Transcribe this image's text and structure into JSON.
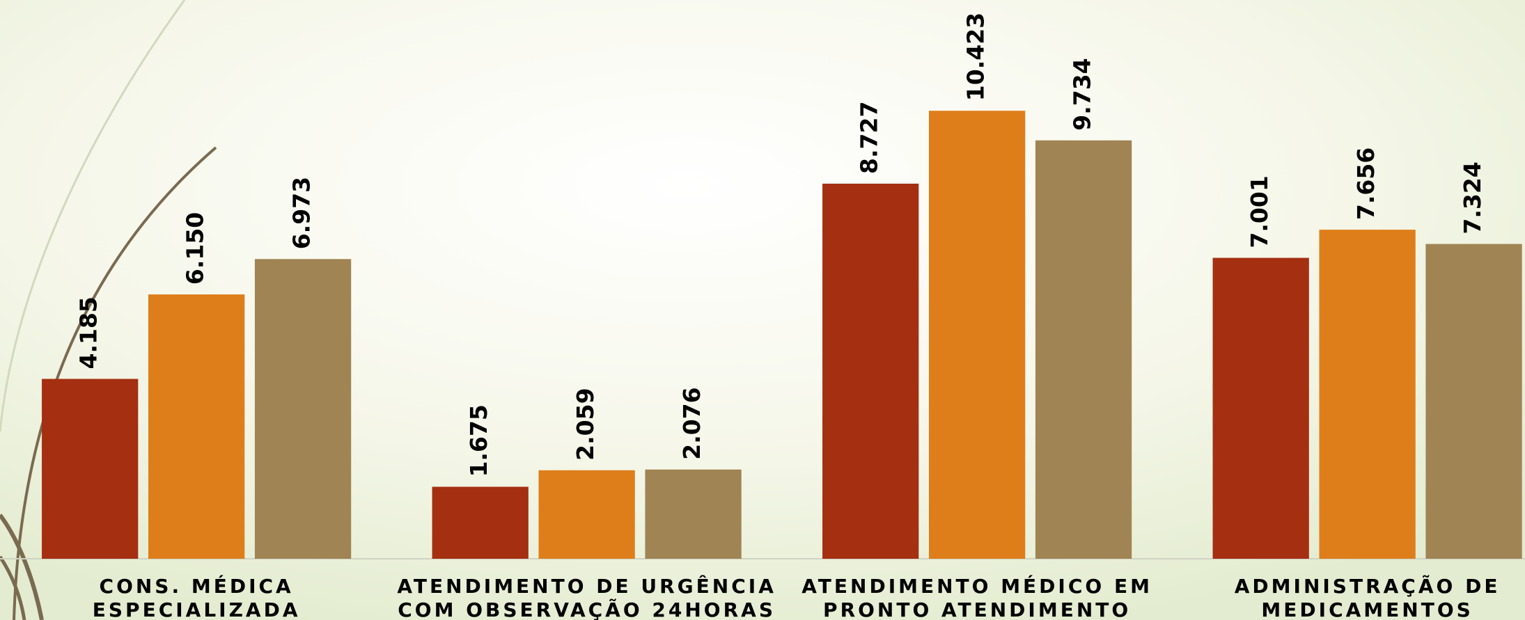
{
  "chart_data": {
    "type": "bar",
    "categories": [
      [
        "CONS. MÉDICA",
        "ESPECIALIZADA"
      ],
      [
        "ATENDIMENTO DE URGÊNCIA",
        "COM OBSERVAÇÃO 24HORAS"
      ],
      [
        "ATENDIMENTO MÉDICO EM",
        "PRONTO ATENDIMENTO"
      ],
      [
        "ADMINISTRAÇÃO DE",
        "MEDICAMENTOS"
      ]
    ],
    "series": [
      {
        "color": "#a52f11",
        "values": [
          4185,
          1675,
          8727,
          7001
        ],
        "value_labels": [
          "4.185",
          "1.675",
          "8.727",
          "7.001"
        ]
      },
      {
        "color": "#de7e1a",
        "values": [
          6150,
          2059,
          10423,
          7656
        ],
        "value_labels": [
          "6.150",
          "2.059",
          "10.423",
          "7.656"
        ]
      },
      {
        "color": "#a08453",
        "values": [
          6973,
          2076,
          9734,
          7324
        ],
        "value_labels": [
          "6.973",
          "2.076",
          "9.734",
          "7.324"
        ]
      }
    ],
    "ylim": [
      0,
      13000
    ]
  }
}
